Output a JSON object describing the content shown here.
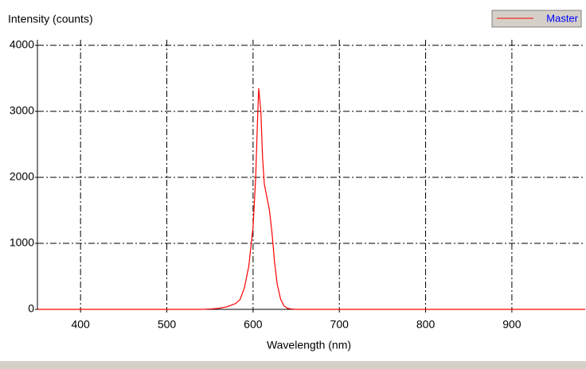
{
  "chart_data": {
    "type": "line",
    "ylabel": "Intensity (counts)",
    "xlabel": "Wavelength (nm)",
    "series": [
      {
        "name": "Master",
        "color": "#ff0000",
        "x": [
          350,
          400,
          450,
          500,
          540,
          550,
          560,
          570,
          580,
          585,
          590,
          595,
          600,
          603,
          605,
          606.5,
          609,
          611,
          613,
          616,
          619,
          622,
          625,
          628,
          632,
          636,
          640,
          645,
          650,
          700,
          800,
          900,
          985
        ],
        "values": [
          0,
          0,
          0,
          0,
          0,
          5,
          15,
          40,
          90,
          150,
          330,
          650,
          1250,
          2000,
          2800,
          3350,
          3000,
          2300,
          1900,
          1700,
          1500,
          1150,
          700,
          380,
          150,
          50,
          15,
          5,
          0,
          0,
          0,
          0,
          0
        ]
      }
    ],
    "xlim": [
      350,
      985
    ],
    "xticks": [
      400,
      500,
      600,
      700,
      800,
      900
    ],
    "ylim": [
      0,
      4000
    ],
    "yticks": [
      0,
      1000,
      2000,
      3000,
      4000
    ],
    "grid": true,
    "legend": "top-right"
  }
}
